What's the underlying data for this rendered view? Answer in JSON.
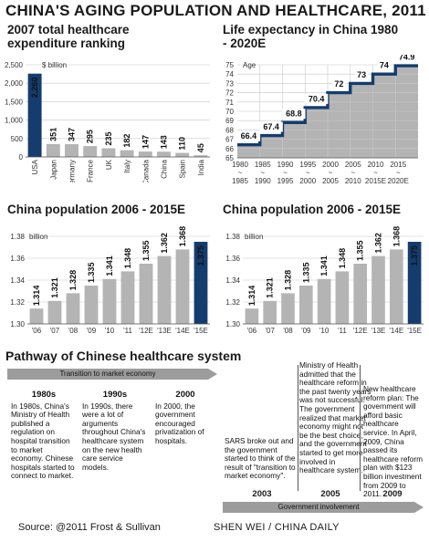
{
  "title": "CHINA'S AGING POPULATION AND HEALTHCARE, 2011",
  "chart_data": [
    {
      "type": "bar",
      "title": "2007 total healthcare expenditure ranking",
      "ylabel": "$ billion",
      "ylim": [
        0,
        2500
      ],
      "yticks": [
        "0",
        "500",
        "1,000",
        "1,500",
        "2,000",
        "2,500"
      ],
      "categories": [
        "USA",
        "Japan",
        "Germany",
        "France",
        "UK",
        "Italy",
        "Canada",
        "China",
        "Spain",
        "India"
      ],
      "values": [
        2260,
        351,
        347,
        295,
        235,
        182,
        147,
        143,
        110,
        45
      ],
      "value_labels": [
        "2,260",
        "351",
        "347",
        "295",
        "235",
        "182",
        "147",
        "143",
        "110",
        "45"
      ],
      "highlight_color": "#143c6e",
      "bar_color": "#b4b4b4",
      "grid": true
    },
    {
      "type": "line",
      "title": "Life expectancy in China 1980 - 2020E",
      "ylabel": "Age",
      "ylim": [
        65,
        75
      ],
      "yticks": [
        "65",
        "66",
        "67",
        "68",
        "69",
        "70",
        "71",
        "72",
        "73",
        "74",
        "75"
      ],
      "categories": [
        [
          "1980",
          "~",
          "1985"
        ],
        [
          "1985",
          "~",
          "1990"
        ],
        [
          "1990",
          "~",
          "1995"
        ],
        [
          "1995",
          "~",
          "2000"
        ],
        [
          "2000",
          "~",
          "2005"
        ],
        [
          "2005",
          "~",
          "2010"
        ],
        [
          "2010",
          "~",
          "2015E"
        ],
        [
          "2015",
          "~",
          "2020E"
        ]
      ],
      "values": [
        66.4,
        67.4,
        68.8,
        70.4,
        72,
        73,
        74,
        74.9
      ],
      "value_labels": [
        "66.4",
        "67.4",
        "68.8",
        "70.4",
        "72",
        "73",
        "74",
        "74.9"
      ],
      "line_color": "#143c6e",
      "area_color": "#b4b4b4",
      "grid": true
    },
    {
      "type": "bar",
      "title": "China population 2006 - 2015E",
      "ylabel": "billion",
      "ylim": [
        1.3,
        1.38
      ],
      "yticks": [
        "1.30",
        "1.32",
        "1.34",
        "1.36",
        "1.38"
      ],
      "categories": [
        "'06",
        "'07",
        "'08",
        "'09",
        "'10",
        "'11",
        "'12E",
        "'13E",
        "'14E",
        "'15E"
      ],
      "values": [
        1.314,
        1.321,
        1.328,
        1.335,
        1.341,
        1.348,
        1.355,
        1.362,
        1.368,
        1.375
      ],
      "value_labels": [
        "1.314",
        "1.321",
        "1.328",
        "1.335",
        "1.341",
        "1.348",
        "1.355",
        "1.362",
        "1.368",
        "1.375"
      ],
      "highlight_color": "#143c6e",
      "bar_color": "#b4b4b4",
      "grid": true
    },
    {
      "type": "bar",
      "title": "China population 2006 - 2015E",
      "ylabel": "billion",
      "ylim": [
        1.3,
        1.38
      ],
      "yticks": [
        "1.30",
        "1.32",
        "1.34",
        "1.36",
        "1.38"
      ],
      "categories": [
        "'06",
        "'07",
        "'08",
        "'09",
        "'10",
        "'11",
        "'12E",
        "'13E",
        "'14E",
        "'15E"
      ],
      "values": [
        1.314,
        1.321,
        1.328,
        1.335,
        1.341,
        1.348,
        1.355,
        1.362,
        1.368,
        1.375
      ],
      "value_labels": [
        "1.314",
        "1.321",
        "1.328",
        "1.335",
        "1.341",
        "1.348",
        "1.355",
        "1.362",
        "1.368",
        "1.375"
      ],
      "highlight_color": "#143c6e",
      "bar_color": "#b4b4b4",
      "grid": true
    }
  ],
  "pathway": {
    "title": "Pathway of Chinese healthcare system",
    "phase1_label": "Transition to market economy",
    "phase2_label": "Government involvement",
    "eras": [
      {
        "year": "1980s",
        "text": "In 1980s, China's Ministry of Health published a regulation on hospital transition to market economy. Chinese hospitals started to connect to market."
      },
      {
        "year": "1990s",
        "text": "In 1990s, there were a lot of arguments throughout China's healthcare system on the new health care service models."
      },
      {
        "year": "2000",
        "text": "In 2000, the government encouraged privatization of hospitals."
      },
      {
        "year": "2003",
        "text": "SARS broke out and the government started to think of the result of \"transition to market economy\"."
      },
      {
        "year": "2005",
        "text": "Ministry of Health admitted that the healthcare reform in the past twenty years was not successful. The government realized that market economy might not be the best choice, and the government started to get more involved in healthcare system."
      },
      {
        "year": "2009",
        "text": "New healthcare reform plan: The government will afford basic healthcare service. In April, 2009, China passed its healthcare reform plan with $123 billion investment from 2009 to 2011."
      }
    ]
  },
  "source": "Source: @2011 Frost & Sullivan",
  "credit": "SHEN WEI / CHINA DAILY"
}
